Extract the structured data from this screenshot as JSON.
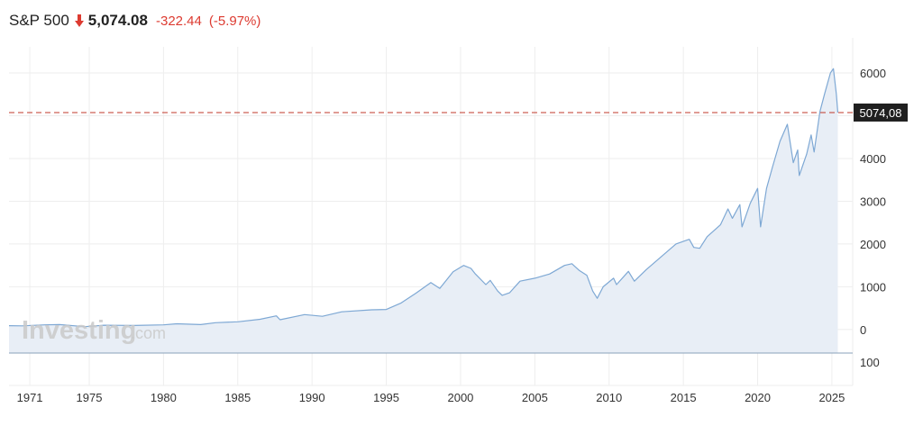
{
  "header": {
    "name": "S&P 500",
    "arrow_icon": "arrow-down-icon",
    "price": "5,074.08",
    "change": "-322.44",
    "change_pct": "(-5.97%)",
    "change_color": "#dd3b31"
  },
  "watermark": {
    "brand": "Investing",
    "suffix": ".com"
  },
  "colors": {
    "line": "#7ea8d4",
    "area": "#e8eef6",
    "ref_line": "#c0392b",
    "label_bg": "#1f1f1f",
    "label_text": "#ffffff",
    "grid": "#eeeeee"
  },
  "chart_data": {
    "type": "area",
    "title": "",
    "xlabel": "",
    "ylabel": "",
    "xlim": [
      1969.6,
      2026.4
    ],
    "ylim": [
      -550,
      6400
    ],
    "x_ticks": [
      1971,
      1975,
      1980,
      1985,
      1990,
      1995,
      2000,
      2005,
      2010,
      2015,
      2020,
      2025
    ],
    "y_ticks": [
      6000,
      5000,
      4000,
      3000,
      2000,
      1000,
      0
    ],
    "y_tick_labels": [
      "6000",
      "4000",
      "3000",
      "2000",
      "1000",
      "0"
    ],
    "volume_tick_label": "100",
    "grid": true,
    "reference_line": {
      "value": 5074.08,
      "label": "5074,08"
    },
    "series": [
      {
        "points": [
          [
            1969.6,
            90
          ],
          [
            1970.5,
            85
          ],
          [
            1972.0,
            110
          ],
          [
            1973.0,
            115
          ],
          [
            1974.7,
            68
          ],
          [
            1976.0,
            100
          ],
          [
            1978.0,
            95
          ],
          [
            1980.0,
            110
          ],
          [
            1980.9,
            135
          ],
          [
            1982.5,
            115
          ],
          [
            1983.5,
            160
          ],
          [
            1985.0,
            180
          ],
          [
            1986.5,
            240
          ],
          [
            1987.6,
            320
          ],
          [
            1987.85,
            230
          ],
          [
            1989.5,
            350
          ],
          [
            1990.7,
            310
          ],
          [
            1992.0,
            415
          ],
          [
            1994.0,
            460
          ],
          [
            1995.0,
            470
          ],
          [
            1996.0,
            620
          ],
          [
            1997.0,
            850
          ],
          [
            1998.0,
            1100
          ],
          [
            1998.6,
            960
          ],
          [
            1999.5,
            1350
          ],
          [
            2000.2,
            1500
          ],
          [
            2000.7,
            1430
          ],
          [
            2001.0,
            1300
          ],
          [
            2001.7,
            1050
          ],
          [
            2002.0,
            1150
          ],
          [
            2002.5,
            900
          ],
          [
            2002.8,
            800
          ],
          [
            2003.3,
            860
          ],
          [
            2004.0,
            1130
          ],
          [
            2005.0,
            1200
          ],
          [
            2006.0,
            1300
          ],
          [
            2007.0,
            1500
          ],
          [
            2007.5,
            1540
          ],
          [
            2008.0,
            1380
          ],
          [
            2008.5,
            1270
          ],
          [
            2008.9,
            900
          ],
          [
            2009.2,
            730
          ],
          [
            2009.6,
            1000
          ],
          [
            2010.3,
            1200
          ],
          [
            2010.5,
            1050
          ],
          [
            2011.3,
            1360
          ],
          [
            2011.7,
            1130
          ],
          [
            2012.5,
            1400
          ],
          [
            2013.5,
            1700
          ],
          [
            2014.5,
            2000
          ],
          [
            2015.4,
            2110
          ],
          [
            2015.7,
            1920
          ],
          [
            2016.1,
            1900
          ],
          [
            2016.6,
            2170
          ],
          [
            2017.5,
            2450
          ],
          [
            2018.0,
            2820
          ],
          [
            2018.3,
            2600
          ],
          [
            2018.8,
            2920
          ],
          [
            2018.95,
            2400
          ],
          [
            2019.5,
            2950
          ],
          [
            2020.0,
            3300
          ],
          [
            2020.2,
            2400
          ],
          [
            2020.6,
            3300
          ],
          [
            2021.0,
            3800
          ],
          [
            2021.5,
            4400
          ],
          [
            2022.0,
            4800
          ],
          [
            2022.4,
            3900
          ],
          [
            2022.7,
            4200
          ],
          [
            2022.8,
            3600
          ],
          [
            2023.3,
            4100
          ],
          [
            2023.6,
            4550
          ],
          [
            2023.8,
            4150
          ],
          [
            2024.2,
            5100
          ],
          [
            2024.5,
            5500
          ],
          [
            2024.9,
            6000
          ],
          [
            2025.1,
            6100
          ],
          [
            2025.3,
            5500
          ],
          [
            2025.4,
            5074.08
          ]
        ]
      }
    ]
  }
}
